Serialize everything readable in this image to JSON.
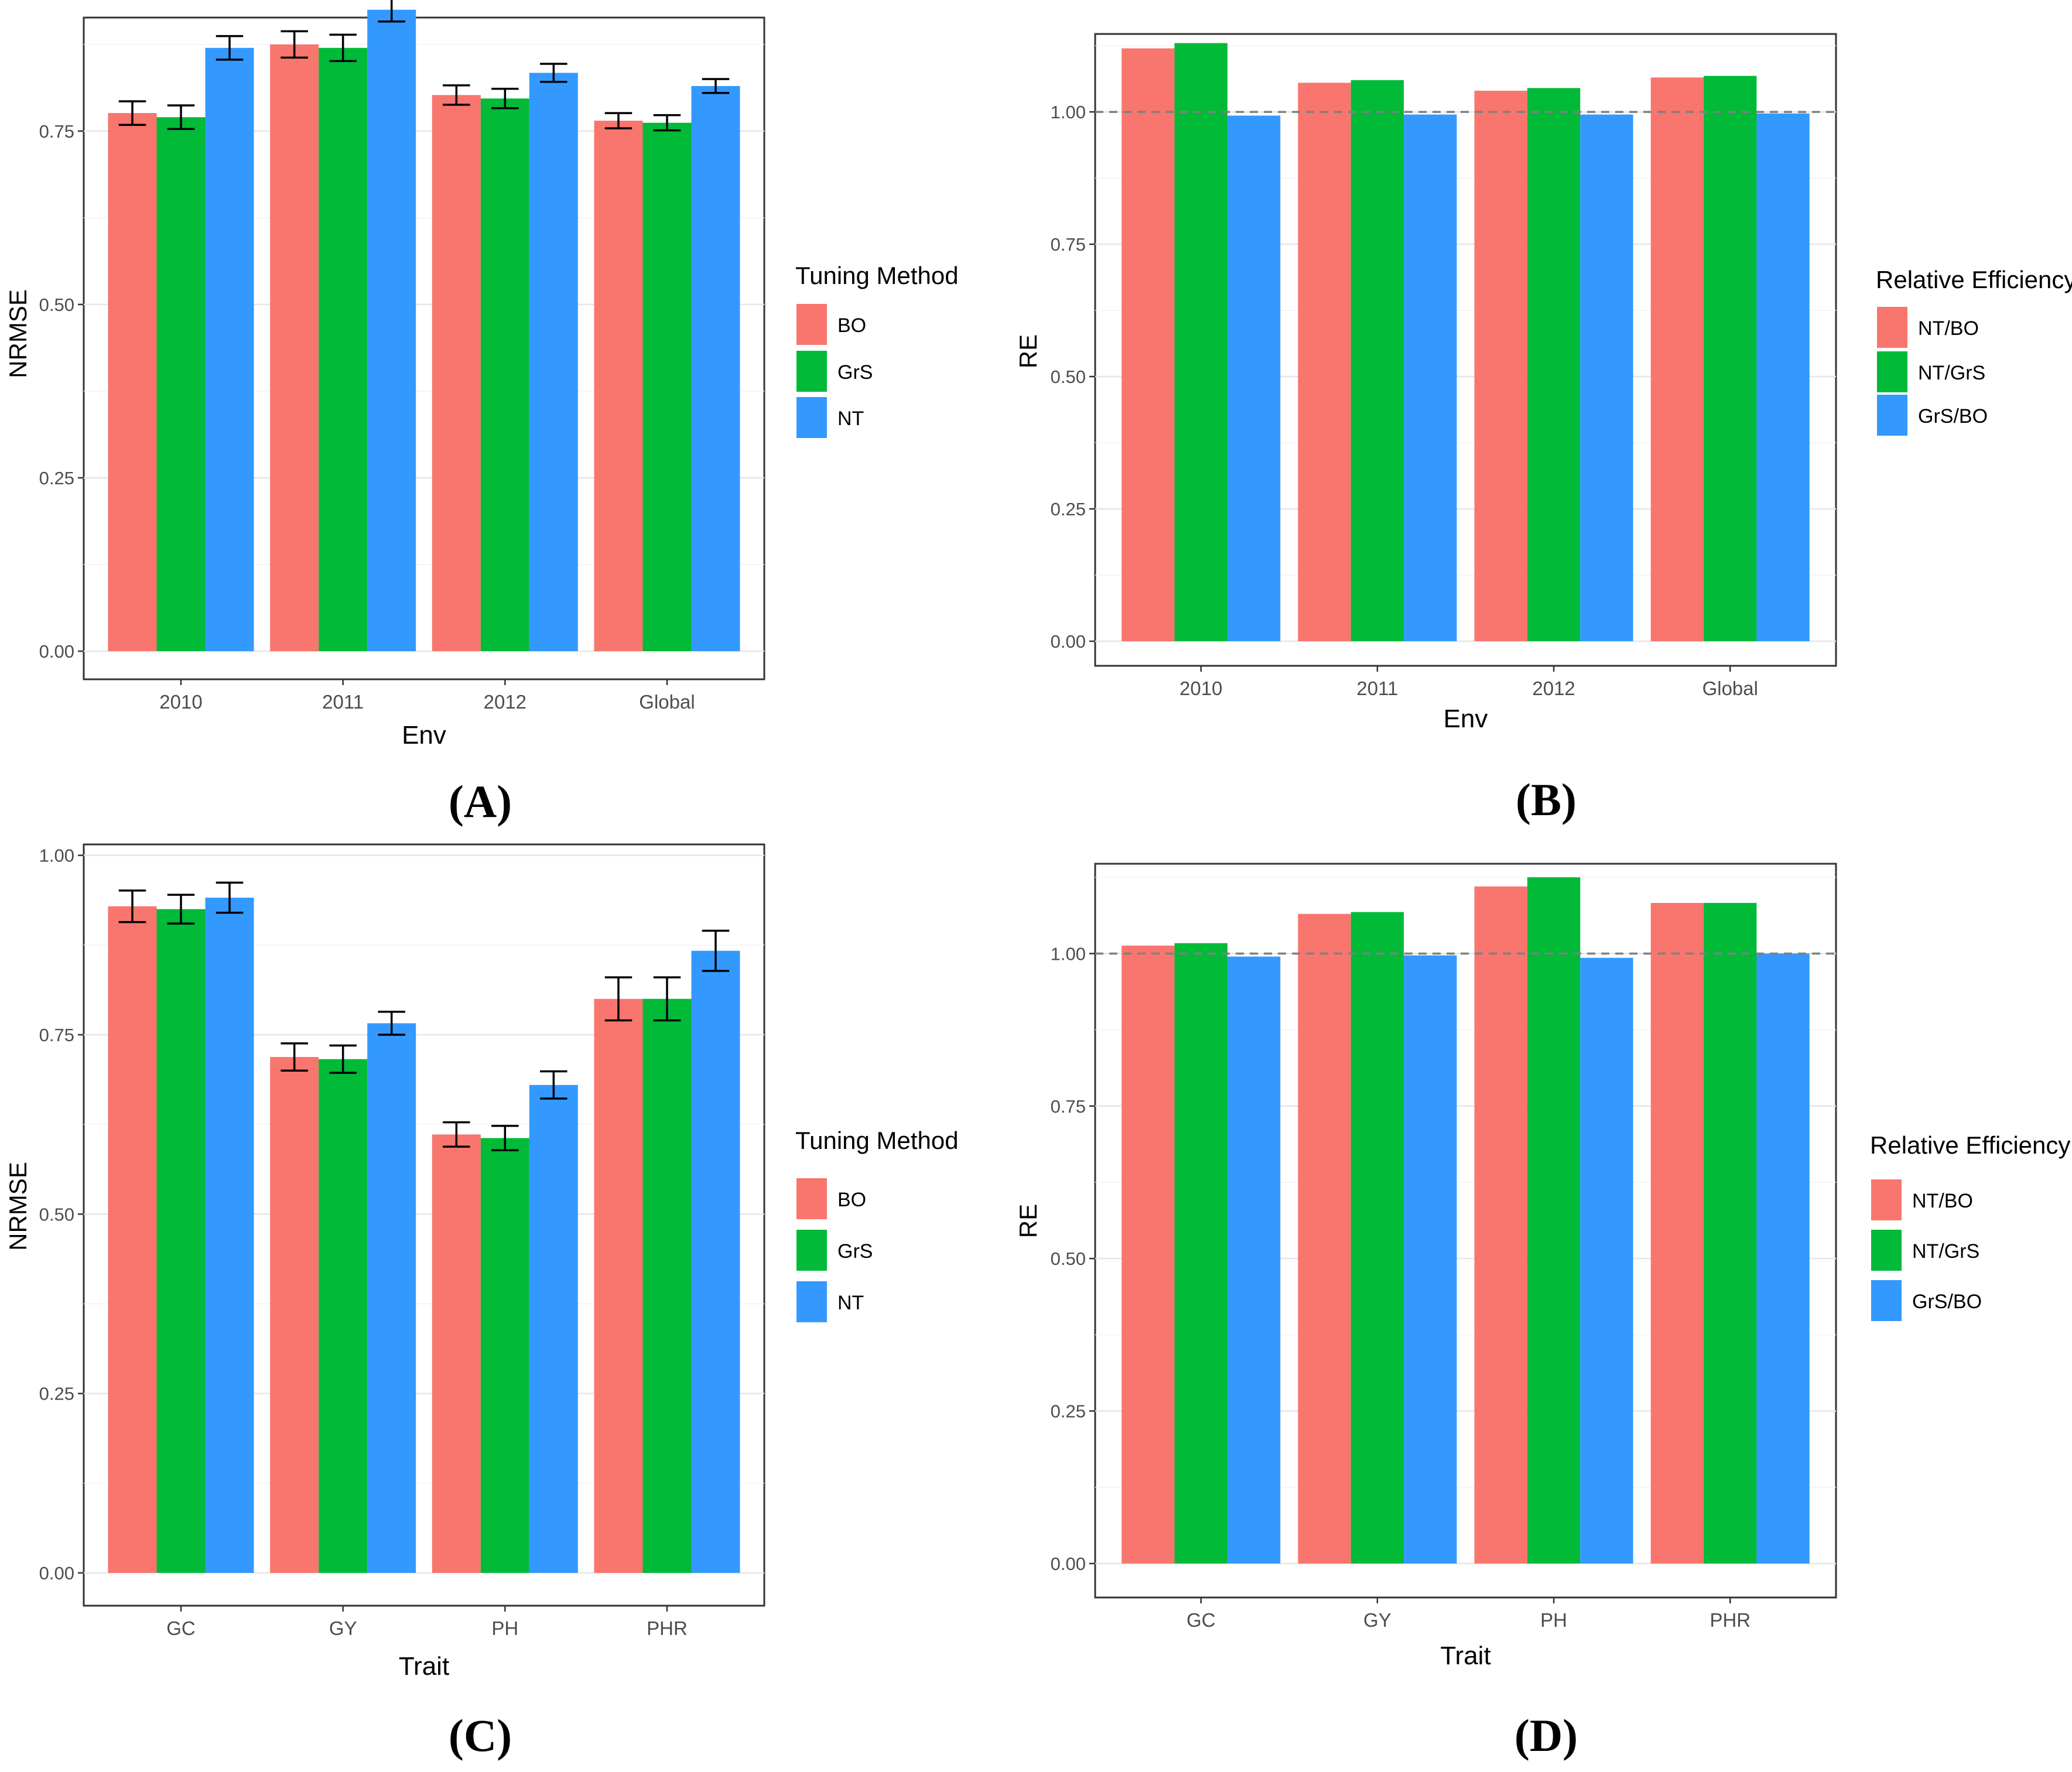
{
  "colors": {
    "red": "#F8766D",
    "green": "#00BA38",
    "blue": "#3399FF"
  },
  "chart_data": [
    {
      "id": "A",
      "panel_label": "(A)",
      "type": "bar",
      "xlabel": "Env",
      "ylabel": "NRMSE",
      "ylim": [
        0,
        0.9
      ],
      "yticks": [
        "0.00",
        "0.25",
        "0.50",
        "0.75"
      ],
      "ytick_values": [
        0,
        0.25,
        0.5,
        0.75
      ],
      "categories": [
        "2010",
        "2011",
        "2012",
        "Global"
      ],
      "legend": {
        "title": "Tuning Method",
        "entries": [
          "BO",
          "GrS",
          "NT"
        ]
      },
      "series": [
        {
          "name": "BO",
          "values": [
            0.776,
            0.875,
            0.802,
            0.765
          ],
          "err": [
            0.017,
            0.019,
            0.014,
            0.011
          ]
        },
        {
          "name": "GrS",
          "values": [
            0.77,
            0.87,
            0.797,
            0.762
          ],
          "err": [
            0.017,
            0.019,
            0.014,
            0.011
          ]
        },
        {
          "name": "NT",
          "values": [
            0.87,
            0.925,
            0.834,
            0.815
          ],
          "err": [
            0.017,
            0.017,
            0.013,
            0.01
          ]
        }
      ],
      "errorbars": true,
      "refline": null
    },
    {
      "id": "B",
      "panel_label": "(B)",
      "type": "bar",
      "xlabel": "Env",
      "ylabel": "RE",
      "ylim": [
        0,
        1.13
      ],
      "yticks": [
        "0.00",
        "0.25",
        "0.50",
        "0.75",
        "1.00"
      ],
      "ytick_values": [
        0,
        0.25,
        0.5,
        0.75,
        1.0
      ],
      "categories": [
        "2010",
        "2011",
        "2012",
        "Global"
      ],
      "legend": {
        "title": "Relative Efficiency",
        "entries": [
          "NT/BO",
          "NT/GrS",
          "GrS/BO"
        ]
      },
      "series": [
        {
          "name": "NT/BO",
          "values": [
            1.12,
            1.055,
            1.04,
            1.065
          ]
        },
        {
          "name": "NT/GrS",
          "values": [
            1.13,
            1.06,
            1.045,
            1.068
          ]
        },
        {
          "name": "GrS/BO",
          "values": [
            0.993,
            0.995,
            0.995,
            0.997
          ]
        }
      ],
      "errorbars": false,
      "refline": 1.0
    },
    {
      "id": "C",
      "panel_label": "(C)",
      "type": "bar",
      "xlabel": "Trait",
      "ylabel": "NRMSE",
      "ylim": [
        0,
        1.0
      ],
      "yticks": [
        "0.00",
        "0.25",
        "0.50",
        "0.75",
        "1.00"
      ],
      "ytick_values": [
        0,
        0.25,
        0.5,
        0.75,
        1.0
      ],
      "categories": [
        "GC",
        "GY",
        "PH",
        "PHR"
      ],
      "legend": {
        "title": "Tuning Method",
        "entries": [
          "BO",
          "GrS",
          "NT"
        ]
      },
      "series": [
        {
          "name": "BO",
          "values": [
            0.929,
            0.719,
            0.611,
            0.8
          ],
          "err": [
            0.022,
            0.019,
            0.017,
            0.03
          ]
        },
        {
          "name": "GrS",
          "values": [
            0.925,
            0.716,
            0.606,
            0.8
          ],
          "err": [
            0.02,
            0.019,
            0.017,
            0.03
          ]
        },
        {
          "name": "NT",
          "values": [
            0.941,
            0.766,
            0.68,
            0.867
          ],
          "err": [
            0.021,
            0.016,
            0.019,
            0.028
          ]
        }
      ],
      "errorbars": true,
      "refline": null
    },
    {
      "id": "D",
      "panel_label": "(D)",
      "type": "bar",
      "xlabel": "Trait",
      "ylabel": "RE",
      "ylim": [
        0,
        1.13
      ],
      "yticks": [
        "0.00",
        "0.25",
        "0.50",
        "0.75",
        "1.00"
      ],
      "ytick_values": [
        0,
        0.25,
        0.5,
        0.75,
        1.0
      ],
      "categories": [
        "GC",
        "GY",
        "PH",
        "PHR"
      ],
      "legend": {
        "title": "Relative Efficiency",
        "entries": [
          "NT/BO",
          "NT/GrS",
          "GrS/BO"
        ]
      },
      "series": [
        {
          "name": "NT/BO",
          "values": [
            1.013,
            1.065,
            1.11,
            1.083
          ]
        },
        {
          "name": "NT/GrS",
          "values": [
            1.017,
            1.068,
            1.125,
            1.083
          ]
        },
        {
          "name": "GrS/BO",
          "values": [
            0.995,
            0.997,
            0.993,
            1.0
          ]
        }
      ],
      "errorbars": false,
      "refline": 1.0
    }
  ]
}
